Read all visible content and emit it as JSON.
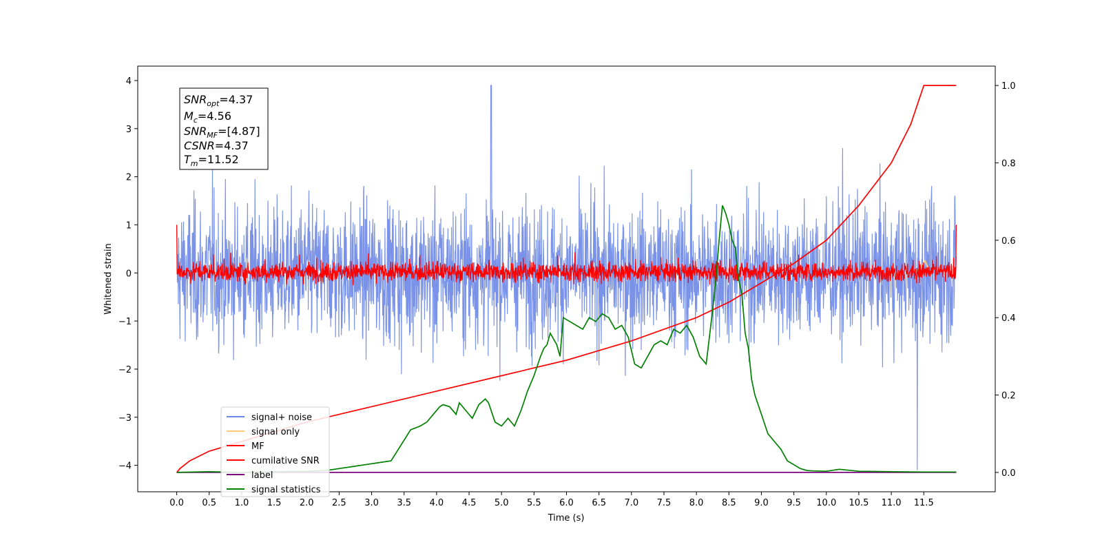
{
  "chart_data": {
    "type": "line",
    "xlabel": "Time (s)",
    "ylabel": "Whitened strain",
    "xlim": [
      -0.6,
      12.6
    ],
    "ylim": [
      -4.55,
      4.3
    ],
    "y2lim": [
      -0.05,
      1.05
    ],
    "x_ticks": [
      "0.0",
      "0.5",
      "1.0",
      "1.5",
      "2.0",
      "2.5",
      "3.0",
      "3.5",
      "4.0",
      "4.5",
      "5.0",
      "5.5",
      "6.0",
      "6.5",
      "7.0",
      "7.5",
      "8.0",
      "8.5",
      "9.0",
      "9.5",
      "10.0",
      "10.5",
      "11.0",
      "11.5"
    ],
    "y_ticks": [
      "−4",
      "−3",
      "−2",
      "−1",
      "0",
      "1",
      "2",
      "3",
      "4"
    ],
    "y2_ticks": [
      "0.0",
      "0.2",
      "0.4",
      "0.6",
      "0.8",
      "1.0"
    ],
    "info_box": {
      "snr_opt": {
        "sym": "SNR",
        "sub": "opt",
        "val": "=4.37"
      },
      "mc": {
        "sym": "M",
        "sub": "c",
        "val": "=4.56"
      },
      "snr_mf": {
        "sym": "SNR",
        "sub": "MF",
        "val": "=[4.87]"
      },
      "csnr": {
        "sym": "CSNR",
        "sub": "",
        "val": "=4.37"
      },
      "tm": {
        "sym": "T",
        "sub": "m",
        "val": "=11.52"
      }
    },
    "legend": [
      "signal+ noise",
      "signal only",
      "MF",
      "cumilative SNR",
      "label",
      "signal statistics"
    ],
    "legend_position": "lower-left",
    "series": [
      {
        "name": "signal+ noise",
        "color": "#6b87e6",
        "axis": "left",
        "description_values": {
          "center": 0.0,
          "typical_range": [
            -2.3,
            2.5
          ],
          "max": 3.9,
          "min": -4.1
        }
      },
      {
        "name": "signal only",
        "color": "#ffc87a",
        "axis": "left",
        "x": [
          11.35,
          11.45,
          11.52,
          11.6
        ],
        "y": [
          0.0,
          0.1,
          0.25,
          0.0
        ]
      },
      {
        "name": "MF",
        "color": "#ff0000",
        "axis": "left",
        "description_values": {
          "center": 0.0,
          "typical_range": [
            -0.35,
            0.5
          ],
          "max": 1.0
        }
      },
      {
        "name": "cumilative SNR",
        "color": "#ff0000",
        "axis": "right",
        "x": [
          0.0,
          0.05,
          0.2,
          0.5,
          1.0,
          2.0,
          3.0,
          4.0,
          5.0,
          6.0,
          7.0,
          8.0,
          8.5,
          9.0,
          9.5,
          10.0,
          10.5,
          11.0,
          11.3,
          11.5,
          12.0
        ],
        "y": [
          0.0,
          0.01,
          0.03,
          0.055,
          0.08,
          0.13,
          0.17,
          0.21,
          0.25,
          0.29,
          0.34,
          0.4,
          0.44,
          0.49,
          0.54,
          0.6,
          0.69,
          0.8,
          0.9,
          1.0,
          1.0
        ]
      },
      {
        "name": "label",
        "color": "#800080",
        "axis": "right",
        "x": [
          0.0,
          12.0
        ],
        "y": [
          0.0,
          0.0
        ]
      },
      {
        "name": "signal statistics",
        "color": "#008000",
        "axis": "right",
        "x": [
          0.0,
          0.5,
          1.0,
          1.5,
          2.0,
          2.3,
          2.5,
          2.7,
          2.9,
          3.1,
          3.3,
          3.45,
          3.6,
          3.75,
          3.85,
          3.95,
          4.05,
          4.1,
          4.2,
          4.3,
          4.35,
          4.45,
          4.55,
          4.65,
          4.75,
          4.8,
          4.9,
          5.0,
          5.1,
          5.2,
          5.3,
          5.4,
          5.5,
          5.6,
          5.65,
          5.7,
          5.75,
          5.85,
          5.9,
          5.95,
          6.05,
          6.15,
          6.25,
          6.35,
          6.45,
          6.55,
          6.65,
          6.75,
          6.85,
          6.95,
          7.05,
          7.15,
          7.25,
          7.35,
          7.45,
          7.55,
          7.65,
          7.75,
          7.85,
          7.95,
          8.05,
          8.15,
          8.25,
          8.3,
          8.35,
          8.4,
          8.45,
          8.5,
          8.55,
          8.6,
          8.65,
          8.7,
          8.75,
          8.8,
          8.85,
          8.9,
          9.0,
          9.1,
          9.2,
          9.3,
          9.4,
          9.5,
          9.6,
          9.7,
          9.8,
          10.0,
          10.2,
          10.5,
          11.0,
          11.5,
          12.0
        ],
        "y": [
          0.0,
          0.002,
          0.0,
          0.002,
          0.003,
          0.005,
          0.01,
          0.015,
          0.02,
          0.025,
          0.03,
          0.07,
          0.11,
          0.12,
          0.13,
          0.15,
          0.17,
          0.175,
          0.17,
          0.15,
          0.18,
          0.16,
          0.14,
          0.175,
          0.19,
          0.18,
          0.13,
          0.12,
          0.14,
          0.12,
          0.16,
          0.21,
          0.25,
          0.3,
          0.32,
          0.33,
          0.36,
          0.33,
          0.3,
          0.4,
          0.39,
          0.38,
          0.37,
          0.4,
          0.39,
          0.41,
          0.4,
          0.37,
          0.38,
          0.35,
          0.28,
          0.27,
          0.3,
          0.33,
          0.34,
          0.33,
          0.37,
          0.36,
          0.38,
          0.35,
          0.3,
          0.28,
          0.42,
          0.5,
          0.6,
          0.69,
          0.67,
          0.64,
          0.6,
          0.58,
          0.5,
          0.46,
          0.36,
          0.32,
          0.24,
          0.2,
          0.15,
          0.1,
          0.08,
          0.06,
          0.03,
          0.02,
          0.01,
          0.005,
          0.004,
          0.003,
          0.008,
          0.003,
          0.002,
          0.001,
          0.001
        ]
      }
    ]
  }
}
